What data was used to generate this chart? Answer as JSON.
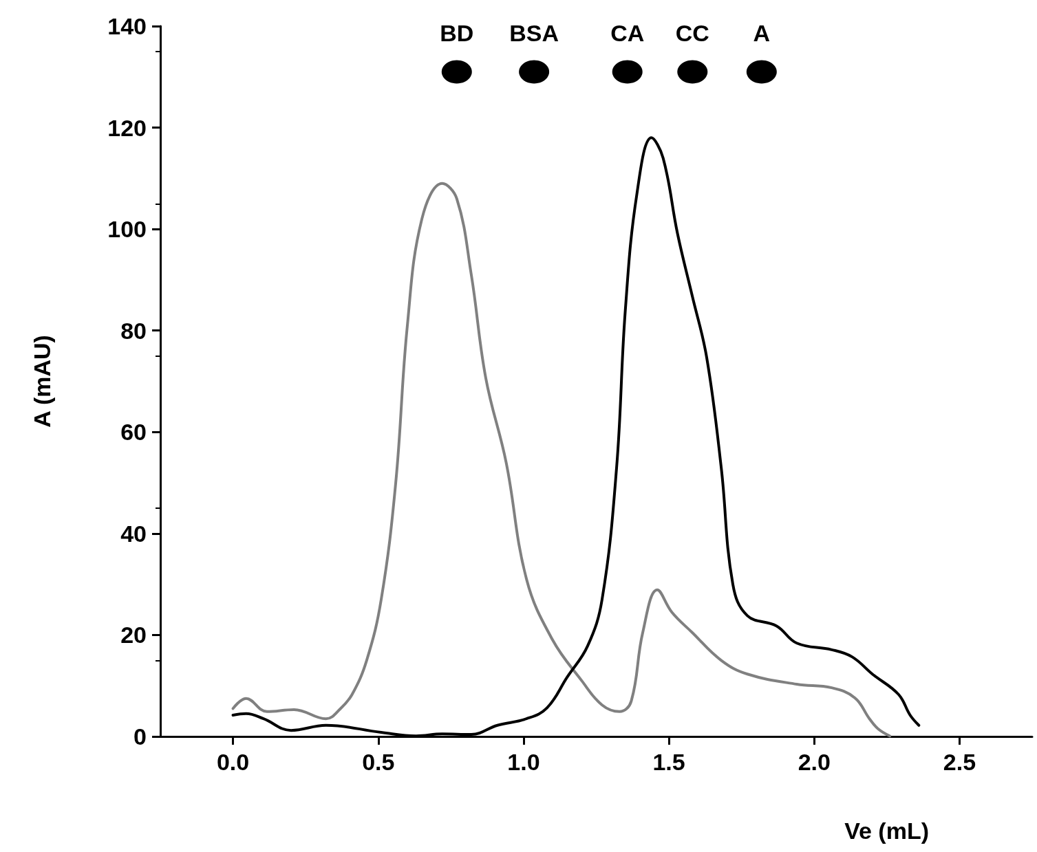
{
  "chart_data": {
    "type": "line",
    "xlabel": "Ve (mL)",
    "ylabel": "A (mAU)",
    "xlim": [
      -0.25,
      2.75
    ],
    "xticks": [
      {
        "value": 0,
        "label": "0.0"
      },
      0.5,
      {
        "value": 1,
        "label": "1.0"
      },
      1.5,
      {
        "value": 2,
        "label": "2.0"
      },
      2.5
    ],
    "ylim": [
      0,
      140
    ],
    "yticks": [
      0,
      20,
      40,
      60,
      80,
      100,
      120,
      140
    ],
    "grid": false,
    "line_style": "solid",
    "series": [
      {
        "color": "#808080",
        "marker": "none",
        "x": [
          0,
          0.045,
          0.117,
          0.21,
          0.32,
          0.37,
          0.41,
          0.46,
          0.51,
          0.56,
          0.6,
          0.65,
          0.72,
          0.77,
          0.82,
          0.87,
          0.94,
          1.01,
          1.1,
          1.2,
          1.27,
          1.33,
          1.37,
          1.41,
          1.46,
          1.51,
          1.58,
          1.68,
          1.77,
          1.94,
          2.06,
          2.14,
          2.19,
          2.22,
          2.26
        ],
        "values": [
          5.5,
          7.5,
          4.9,
          5.3,
          3.5,
          5.5,
          8.3,
          15,
          27,
          50,
          81,
          102,
          109,
          106,
          91,
          70.6,
          54,
          31,
          19,
          11,
          6.2,
          4.9,
          6.9,
          20.5,
          28.9,
          24.5,
          20.5,
          15,
          12.3,
          10.3,
          9.6,
          7.6,
          3.5,
          1.5,
          0.1
        ]
      },
      {
        "color": "#000000",
        "marker": "none",
        "x": [
          0,
          0.045,
          0.105,
          0.2,
          0.32,
          0.51,
          0.63,
          0.72,
          0.82,
          0.91,
          1.01,
          1.08,
          1.15,
          1.22,
          1.27,
          1.32,
          1.35,
          1.39,
          1.44,
          1.48,
          1.53,
          1.58,
          1.63,
          1.68,
          1.72,
          1.77,
          1.87,
          1.94,
          2.06,
          2.13,
          2.2,
          2.29,
          2.33,
          2.36
        ],
        "values": [
          4.2,
          4.5,
          3.5,
          1.2,
          2.2,
          0.8,
          0.1,
          0.5,
          0.4,
          2.2,
          3.5,
          5.6,
          11.7,
          17.8,
          27,
          53,
          84,
          107,
          118,
          114,
          99,
          86.9,
          74.7,
          53,
          30,
          23.8,
          21.8,
          18.4,
          17.1,
          15.7,
          12.3,
          8.3,
          4.2,
          2.2
        ]
      },
      {
        "type": "scatter",
        "color": "#000000",
        "marker": "circle",
        "x": [
          0.77,
          1.036,
          1.357,
          1.581,
          1.819
        ],
        "values": [
          131,
          131,
          131,
          131,
          131
        ],
        "value_labels": [
          "BD",
          "BSA",
          "CA",
          "CC",
          "A"
        ]
      }
    ]
  }
}
